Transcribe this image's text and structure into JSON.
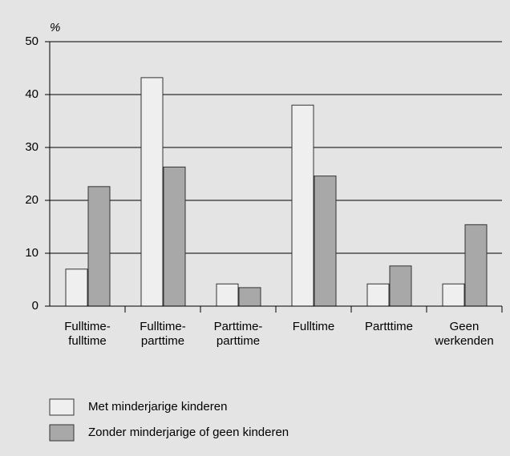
{
  "chart_data": {
    "type": "bar",
    "y_unit": "%",
    "categories": [
      "Fulltime-\nfulltime",
      "Fulltime-\nparttime",
      "Parttime-\nparttime",
      "Fulltime",
      "Partttime",
      "Geen\nwerkenden"
    ],
    "series": [
      {
        "name": "Met minderjarige kinderen",
        "color": "#efefef",
        "values": [
          7,
          43.2,
          4.2,
          38,
          4.2,
          4.2
        ]
      },
      {
        "name": "Zonder minderjarige of geen kinderen",
        "color": "#a8a8a8",
        "values": [
          22.6,
          26.3,
          3.5,
          24.6,
          7.6,
          15.4
        ]
      }
    ],
    "ylim": [
      0,
      50
    ],
    "yticks": [
      0,
      10,
      20,
      30,
      40,
      50
    ],
    "grid": true,
    "legend": "bottom"
  }
}
